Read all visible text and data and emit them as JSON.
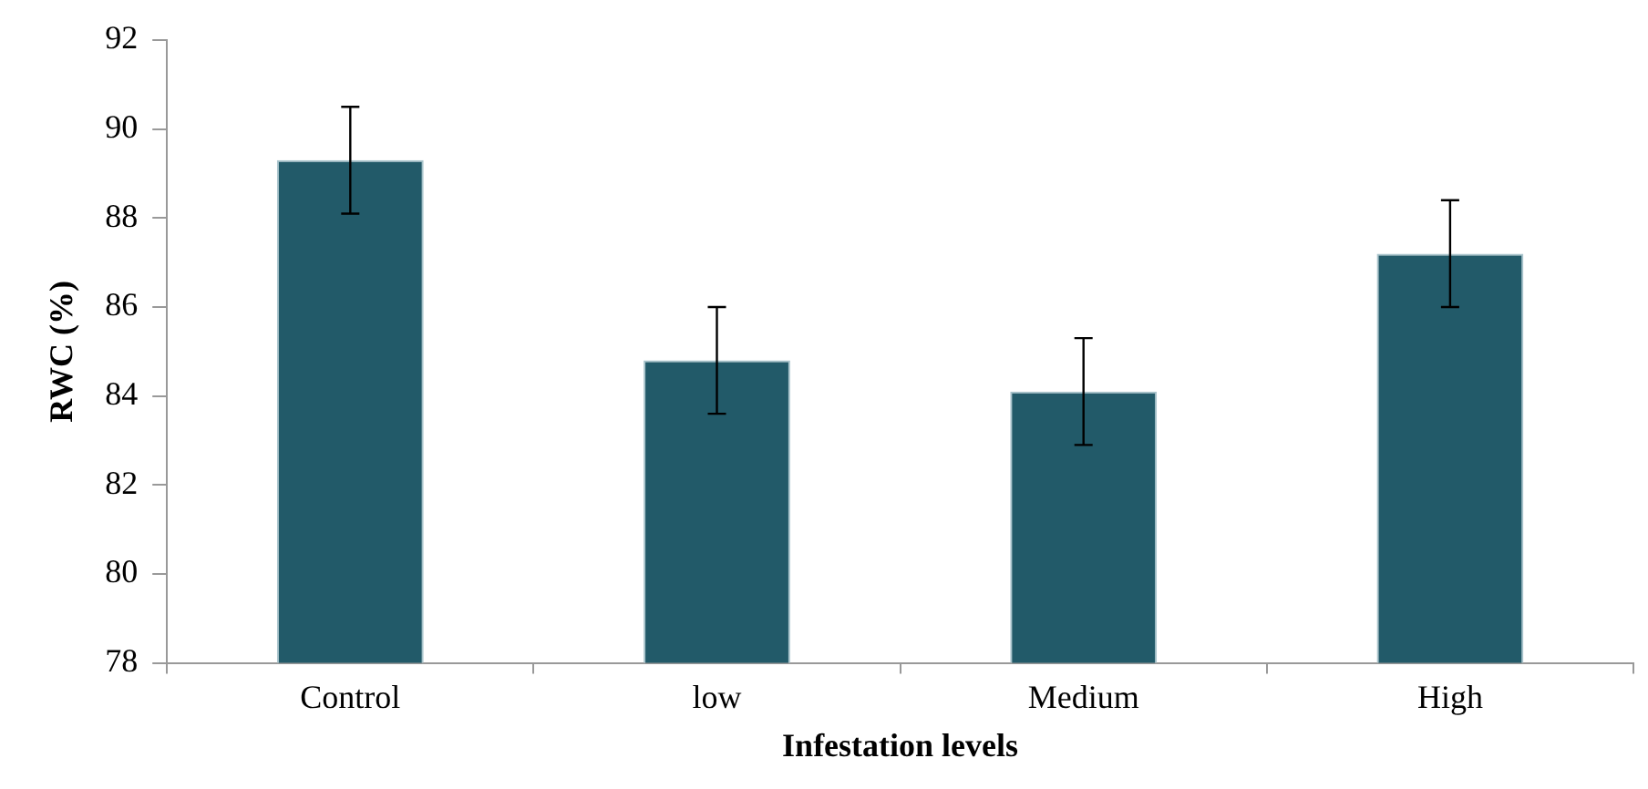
{
  "chart_data": {
    "type": "bar",
    "xlabel": "Infestation levels",
    "ylabel": "RWC (%)",
    "categories": [
      "Control",
      "low",
      "Medium",
      "High"
    ],
    "values": [
      89.3,
      84.8,
      84.1,
      87.2
    ],
    "errors": [
      1.2,
      1.2,
      1.2,
      1.2
    ],
    "color": "#225a69",
    "ylim": [
      78,
      92
    ],
    "yticks": [
      78,
      80,
      82,
      84,
      86,
      88,
      90,
      92
    ],
    "grid": false,
    "legend": false
  }
}
